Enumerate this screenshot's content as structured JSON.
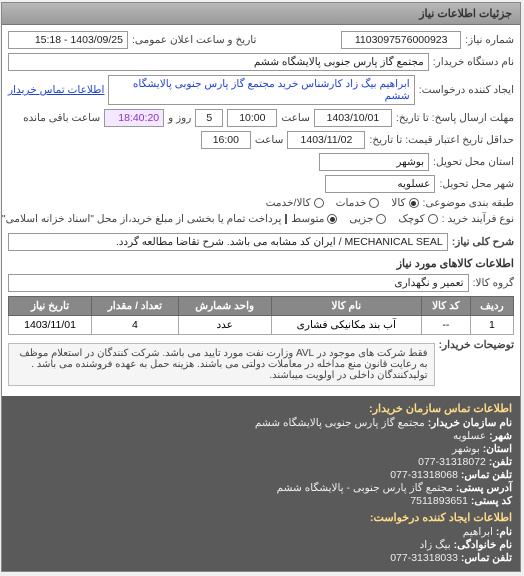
{
  "panel_title": "جزئیات اطلاعات نیاز",
  "req_number_label": "شماره نیاز:",
  "req_number": "1103097576000923",
  "announce_label": "تاریخ و ساعت اعلان عمومی:",
  "announce_value": "1403/09/25 - 15:18",
  "buyer_org_label": "نام دستگاه خریدار:",
  "buyer_org": "مجتمع گاز پارس جنوبی  پالایشگاه ششم",
  "creator_label": "ایجاد کننده درخواست:",
  "creator": "ابراهیم بیگ زاد کارشناس خرید مجتمع گاز پارس جنوبی  پالایشگاه ششم",
  "contact_link": "اطلاعات تماس خریدار",
  "deadline_from_label": "مهلت ارسال پاسخ: تا تاریخ:",
  "deadline_date": "1403/10/01",
  "time_label": "ساعت",
  "deadline_time": "10:00",
  "days_left": "5",
  "days_text": "روز و",
  "time_left": "18:40:20",
  "time_left_text": "ساعت باقی مانده",
  "validity_label": "حداقل تاریخ اعتبار قیمت: تا تاریخ:",
  "validity_date": "1403/11/02",
  "validity_time": "16:00",
  "province_label": "استان محل تحویل:",
  "province": "بوشهر",
  "city_label": "شهر محل تحویل:",
  "city": "عسلویه",
  "category_label": "طبقه بندی موضوعی:",
  "categories": {
    "kala": "کالا",
    "khadamat": "خدمات",
    "kalakhadamat": "کالا/خدمت"
  },
  "category_selected": "kala",
  "process_label": "نوع فرآیند خرید :",
  "process": {
    "k": "کوچک",
    "j": "جزیی",
    "m": "متوسط"
  },
  "process_selected": "m",
  "payment_note": "پرداخت تمام یا بخشی از مبلغ خرید،از محل \"اسناد خزانه اسلامی\" خواهد بود.",
  "need_desc_label": "شرح کلی نیاز:",
  "need_desc": "MECHANICAL SEAL / ایران کد مشابه می باشد. شرح تقاضا مطالعه گردد.",
  "goods_section": "اطلاعات کالاهای مورد نیاز",
  "goods_group_label": "گروه کالا:",
  "goods_group": "تعمیر و نگهداری",
  "table": {
    "headers": [
      "ردیف",
      "کد کالا",
      "نام کالا",
      "واحد شمارش",
      "تعداد / مقدار",
      "تاریخ نیاز"
    ],
    "rows": [
      [
        "1",
        "--",
        "آب بند مکانیکی فشاری",
        "عدد",
        "4",
        "1403/11/01"
      ]
    ]
  },
  "buyer_note_label": "توضیحات خریدار:",
  "buyer_note": "فقط شرکت های موجود در AVL وزارت نفت مورد تایید می باشد. شرکت کنندگان در استعلام موظف به رعایت قانون منع مداخله در معاملات دولتی می باشند. هزینه حمل به عهده فروشنده می باشد . تولیدکنندگان داخلی در اولویت میباشند.",
  "contact": {
    "section_title": "اطلاعات تماس سازمان خریدار:",
    "org_label": "نام سازمان خریدار:",
    "org": "مجتمع گاز پارس جنوبی پالایشگاه ششم",
    "city_label": "شهر:",
    "city": "عسلویه",
    "prov_label": "استان:",
    "prov": "بوشهر",
    "tel_label": "تلفن:",
    "tel": "31318072-077",
    "fax_label": "تلفن تماس:",
    "fax": "31318068-077",
    "addr_label": "آدرس پستی:",
    "addr": "مجتمع گاز پارس جنوبی - پالایشگاه ششم",
    "post_label": "کد پستی:",
    "post": "7511893651",
    "req_title": "اطلاعات ایجاد کننده درخواست:",
    "name_label": "نام:",
    "name": "ابراهیم",
    "family_label": "نام خانوادگی:",
    "family": "بیگ زاد",
    "tel2_label": "تلفن تماس:",
    "tel2": "31318033-077"
  }
}
